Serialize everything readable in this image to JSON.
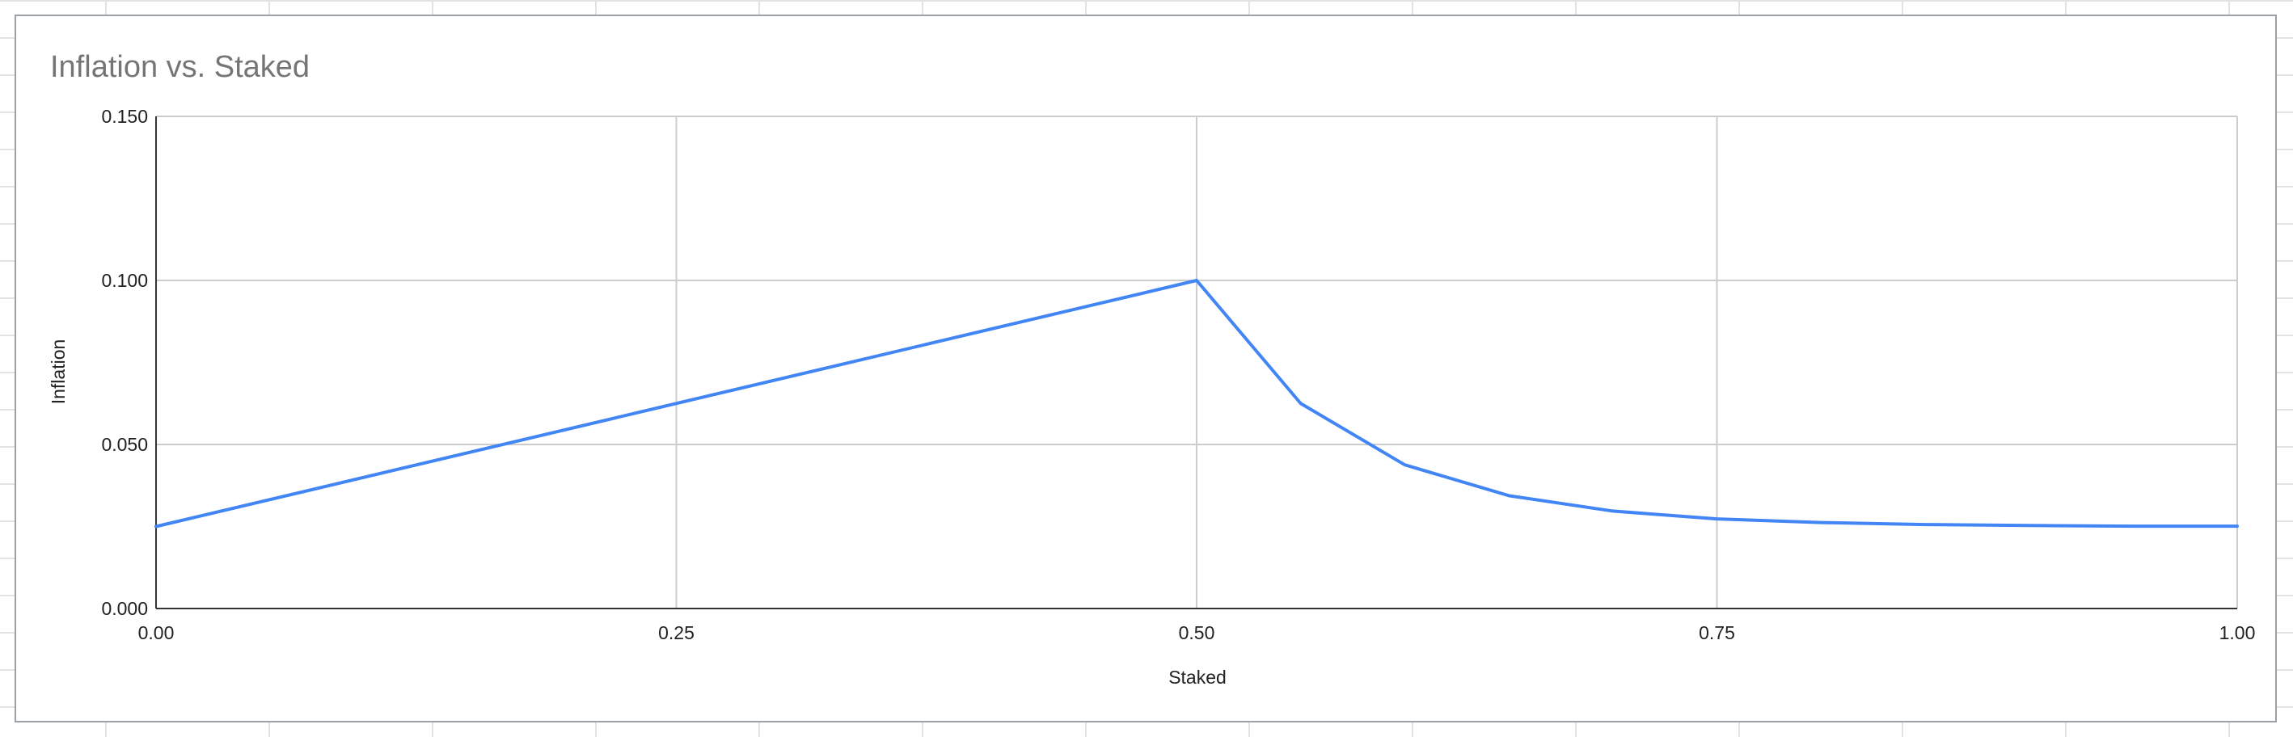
{
  "chart_data": {
    "type": "line",
    "title": "Inflation vs. Staked",
    "xlabel": "Staked",
    "ylabel": "Inflation",
    "xlim": [
      0,
      1
    ],
    "ylim": [
      0,
      0.15
    ],
    "x_ticks": [
      "0.00",
      "0.25",
      "0.50",
      "0.75",
      "1.00"
    ],
    "y_ticks": [
      "0.000",
      "0.050",
      "0.100",
      "0.150"
    ],
    "grid": true,
    "legend": "none",
    "series": [
      {
        "color": "#4285f4",
        "x": [
          0.0,
          0.5,
          0.55,
          0.6,
          0.65,
          0.7,
          0.75,
          0.8,
          0.85,
          0.9,
          0.95,
          1.0
        ],
        "y": [
          0.025,
          0.1,
          0.0625,
          0.0438,
          0.0344,
          0.0297,
          0.0273,
          0.0262,
          0.0256,
          0.0253,
          0.0251,
          0.0251
        ]
      }
    ]
  },
  "colors": {
    "title": "#757575",
    "axis_text": "#222222",
    "grid": "#cccccc",
    "axis_line": "#333333",
    "line": "#4285f4"
  }
}
